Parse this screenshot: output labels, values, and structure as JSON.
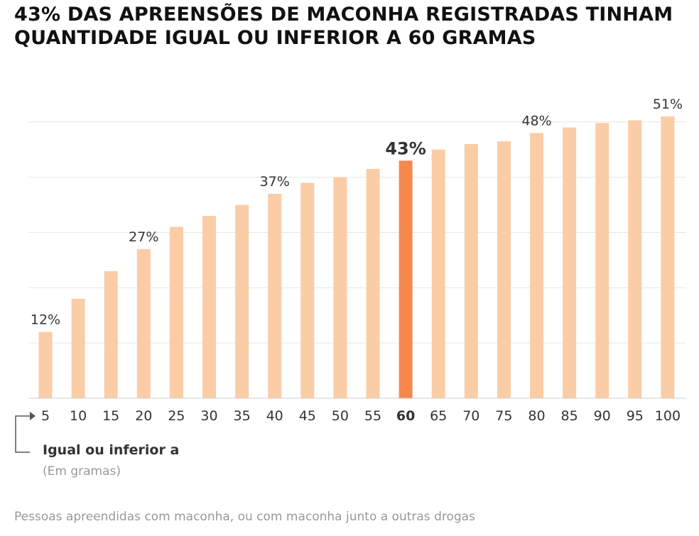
{
  "title": "43% DAS APREENSÕES DE MACONHA REGISTRADAS TINHAM QUANTIDADE IGUAL OU INFERIOR A 60 GRAMAS",
  "legend_label": "Igual ou inferior a",
  "legend_unit": "(Em gramas)",
  "source_note": "Pessoas apreendidas com maconha, ou com maconha junto a outras drogas",
  "colors": {
    "bar": "#FBCDA6",
    "highlight": "#F6884E",
    "grid": "#e6e6e6",
    "axis": "#555555"
  },
  "chart_data": {
    "type": "bar",
    "categories": [
      "5",
      "10",
      "15",
      "20",
      "25",
      "30",
      "35",
      "40",
      "45",
      "50",
      "55",
      "60",
      "65",
      "70",
      "75",
      "80",
      "85",
      "90",
      "95",
      "100"
    ],
    "values": [
      12,
      18,
      23,
      27,
      31,
      33,
      35,
      37,
      39,
      40,
      41.5,
      43,
      45,
      46,
      46.5,
      48,
      49,
      49.8,
      50.3,
      51
    ],
    "value_labels": {
      "0": "12%",
      "3": "27%",
      "7": "37%",
      "11": "43%",
      "15": "48%",
      "19": "51%"
    },
    "highlight_index": 11,
    "xlabel": "Igual ou inferior a",
    "ylabel": "",
    "ylim": [
      0,
      60
    ],
    "grid": true,
    "unit": "%"
  }
}
